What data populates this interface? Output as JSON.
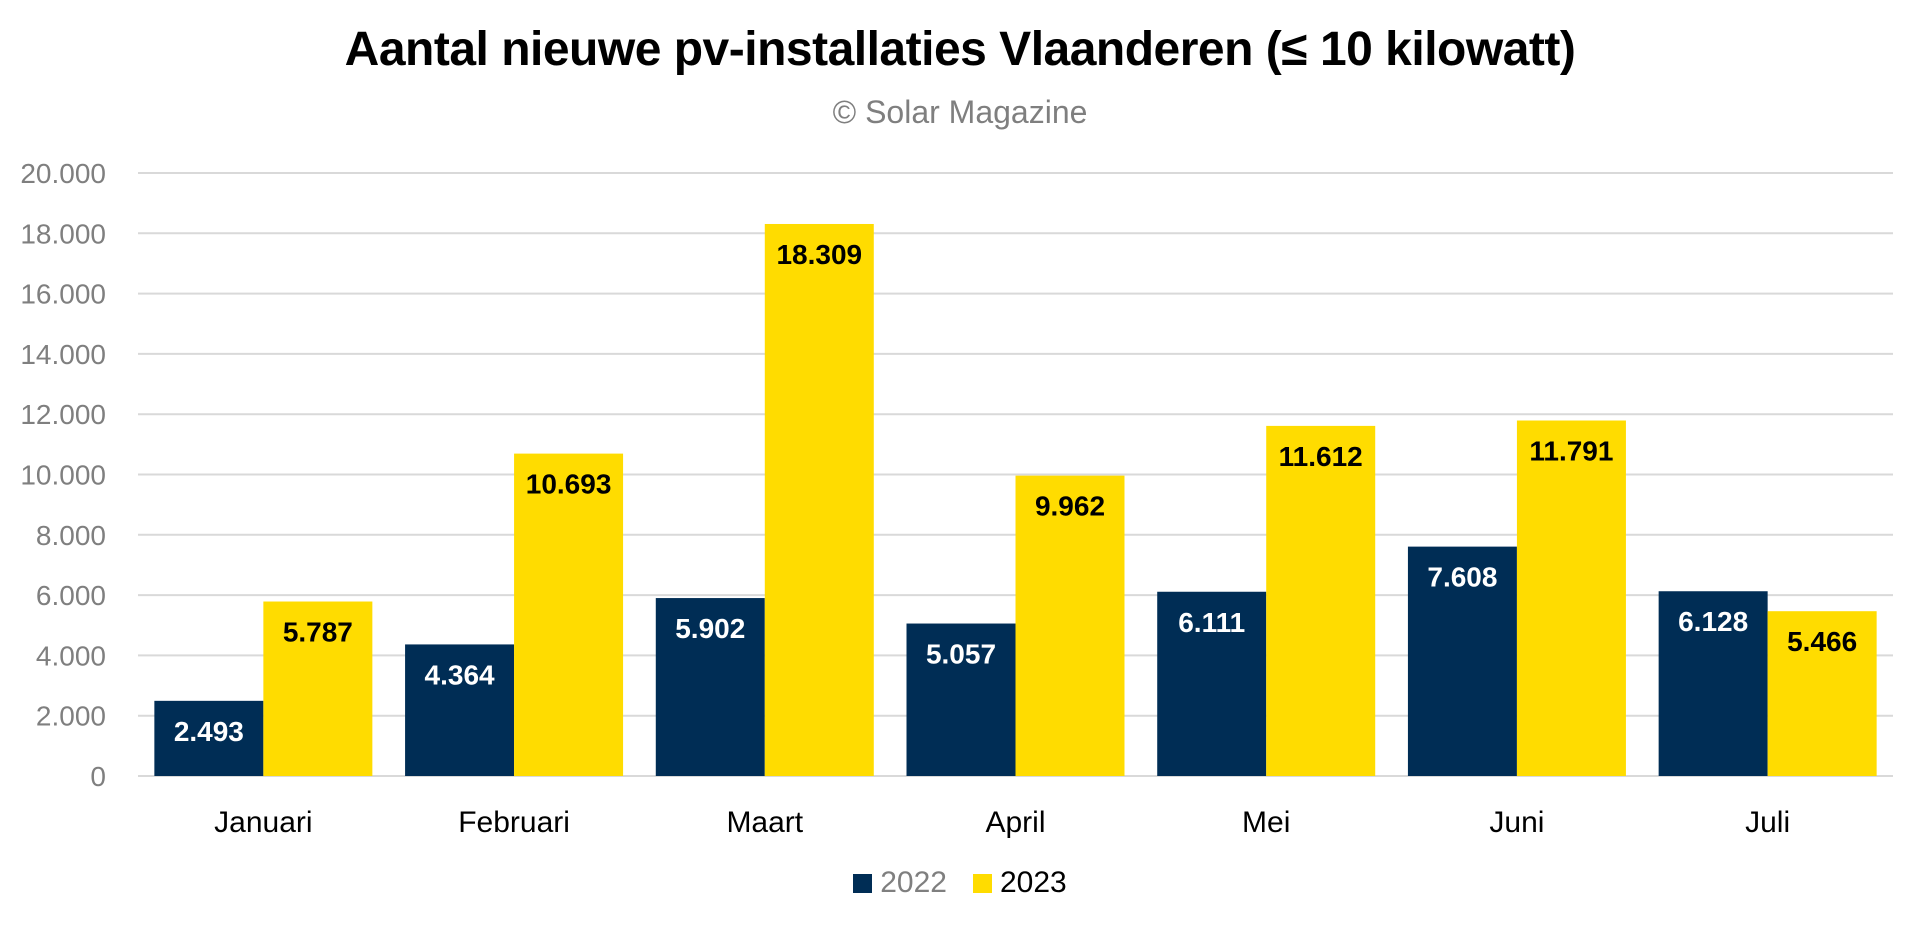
{
  "chart_data": {
    "type": "bar",
    "title": "Aantal nieuwe pv-installaties Vlaanderen (≤ 10 kilowatt)",
    "subtitle": "© Solar Magazine",
    "xlabel": "",
    "ylabel": "",
    "categories": [
      "Januari",
      "Februari",
      "Maart",
      "April",
      "Mei",
      "Juni",
      "Juli"
    ],
    "series": [
      {
        "name": "2022",
        "color": "#002d55",
        "label_color": "#ffffff",
        "legend_text_color": "#7f7f7f",
        "values": [
          2493,
          4364,
          5902,
          5057,
          6111,
          7608,
          6128
        ],
        "labels": [
          "2.493",
          "4.364",
          "5.902",
          "5.057",
          "6.111",
          "7.608",
          "6.128"
        ]
      },
      {
        "name": "2023",
        "color": "#ffdc00",
        "label_color": "#000000",
        "legend_text_color": "#000000",
        "values": [
          5787,
          10693,
          18309,
          9962,
          11612,
          11791,
          5466
        ],
        "labels": [
          "5.787",
          "10.693",
          "18.309",
          "9.962",
          "11.612",
          "11.791",
          "5.466"
        ]
      }
    ],
    "ylim": [
      0,
      20000
    ],
    "yticks": [
      0,
      2000,
      4000,
      6000,
      8000,
      10000,
      12000,
      14000,
      16000,
      18000,
      20000
    ],
    "ytick_labels": [
      "0",
      "2.000",
      "4.000",
      "6.000",
      "8.000",
      "10.000",
      "12.000",
      "14.000",
      "16.000",
      "18.000",
      "20.000"
    ],
    "grid": true,
    "legend_position": "bottom-center",
    "gridline_color": "#d9d9d9",
    "axis_text_color": "#7f7f7f"
  }
}
